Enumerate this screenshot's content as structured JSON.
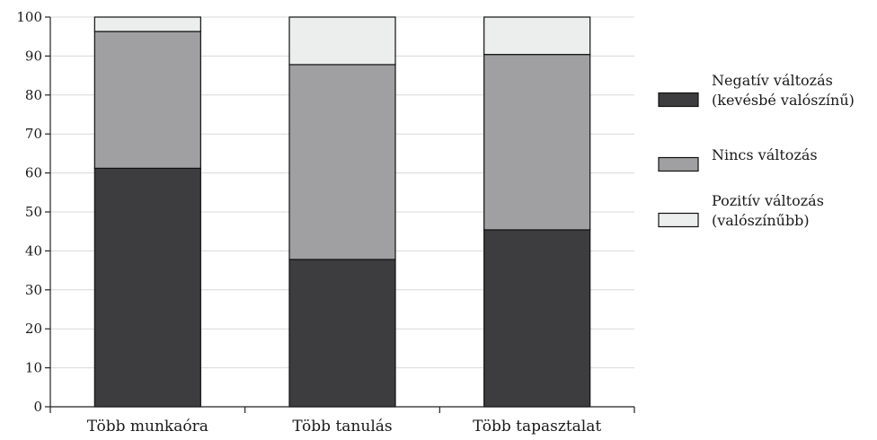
{
  "chart_data": {
    "type": "bar",
    "stacked": true,
    "categories": [
      "Több munkaóra",
      "Több tanulás",
      "Több tapasztalat"
    ],
    "series": [
      {
        "name": "Negatív változás (kevésbé valószínű)",
        "legend_lines": [
          "Negatív változás",
          "(kevésbé valószínű)"
        ],
        "color": "#3d3d3f",
        "values": [
          61.2,
          37.8,
          45.4
        ]
      },
      {
        "name": "Nincs változás",
        "legend_lines": [
          "Nincs változás"
        ],
        "color": "#a0a0a2",
        "values": [
          35.1,
          50.0,
          45.0
        ]
      },
      {
        "name": "Pozitív változás (valószínűbb)",
        "legend_lines": [
          "Pozitív változás",
          "(valószínűbb)"
        ],
        "color": "#eceded",
        "values": [
          3.7,
          12.2,
          9.6
        ]
      }
    ],
    "ylim": [
      0,
      100
    ],
    "yticks": [
      0,
      10,
      20,
      30,
      40,
      50,
      60,
      70,
      80,
      90,
      100
    ],
    "title": "",
    "xlabel": "",
    "ylabel": "",
    "grid": true,
    "legend_position": "right"
  }
}
